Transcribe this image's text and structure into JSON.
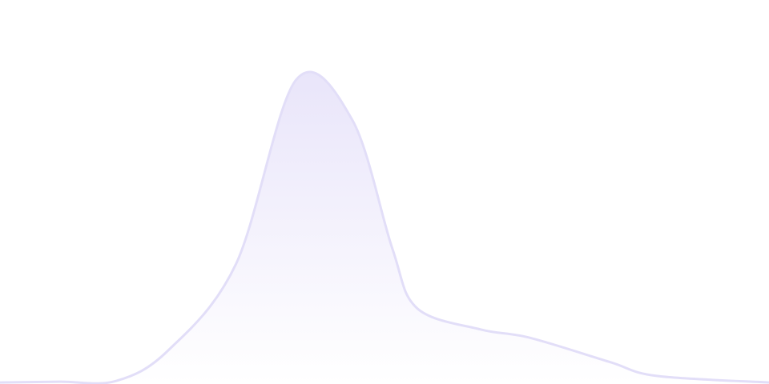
{
  "chart_data": {
    "type": "area",
    "title": "",
    "xlabel": "",
    "ylabel": "",
    "xlim": [
      0,
      100
    ],
    "ylim": [
      0,
      100
    ],
    "grid": false,
    "axes_visible": false,
    "legend": "none",
    "x": [
      0,
      7.8,
      15.1,
      21.9,
      30.7,
      38.5,
      45.8,
      51,
      54.2,
      62.5,
      68.8,
      79.2,
      85.4,
      100
    ],
    "series": [
      {
        "values": [
          0.4,
          0.6,
          0.8,
          8.8,
          31.3,
          79.2,
          68.8,
          35.4,
          19.8,
          14.2,
          12.1,
          5.8,
          2.1,
          0.4
        ]
      }
    ],
    "colors": {
      "line": "#e2def8",
      "fill_top": "#e9e5fa",
      "fill_bottom": "#ffffff"
    }
  }
}
